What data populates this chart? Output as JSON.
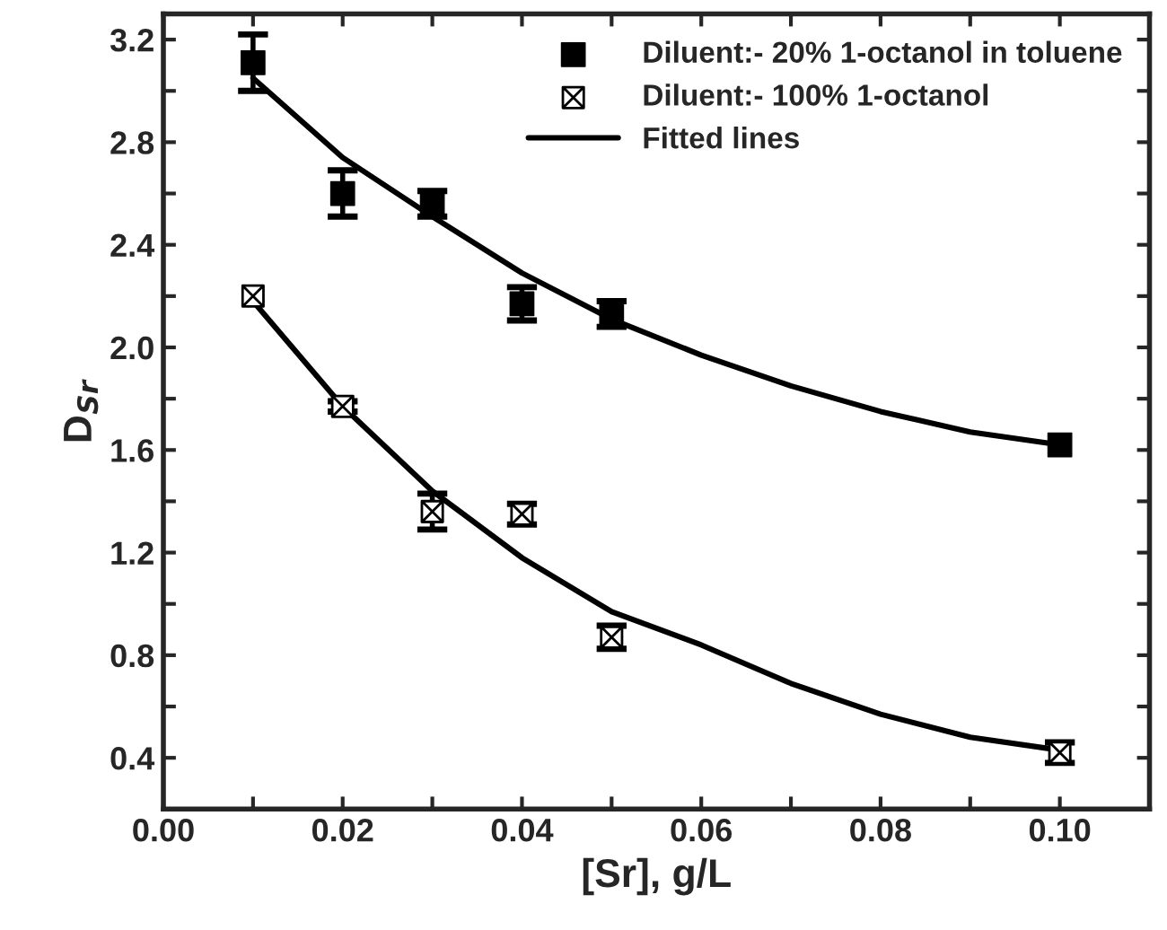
{
  "chart_data": {
    "type": "scatter",
    "xlabel": "[Sr], g/L",
    "ylabel": "D$_{Sr}$",
    "x": [
      0.01,
      0.02,
      0.03,
      0.04,
      0.05,
      0.1
    ],
    "series": [
      {
        "name": "Diluent:- 20% 1-octanol in toluene",
        "color": "#000000",
        "marker": "square",
        "values": [
          3.11,
          2.6,
          2.56,
          2.17,
          2.13,
          1.62
        ],
        "errors": [
          0.11,
          0.09,
          0.05,
          0.065,
          0.05,
          null
        ]
      },
      {
        "name": "Diluent:- 100% 1-octanol",
        "color": "#000000",
        "marker": "cross",
        "values": [
          2.2,
          1.77,
          1.36,
          1.35,
          0.87,
          0.42
        ],
        "errors": [
          null,
          0.02,
          0.07,
          0.04,
          0.045,
          0.04
        ]
      },
      {
        "type": "line",
        "name": "Fitted lines",
        "color": "#000000",
        "x": [
          0.01,
          0.02,
          0.03,
          0.04,
          0.05,
          0.06,
          0.07,
          0.08,
          0.09,
          0.1
        ],
        "values": [
          3.05,
          2.74,
          2.51,
          2.29,
          2.11,
          1.97,
          1.85,
          1.75,
          1.67,
          1.62
        ]
      },
      {
        "type": "line",
        "color": "#000000",
        "x": [
          0.01,
          0.02,
          0.03,
          0.04,
          0.05,
          0.06,
          0.07,
          0.08,
          0.09,
          0.1
        ],
        "values": [
          2.18,
          1.77,
          1.44,
          1.18,
          0.97,
          0.84,
          0.69,
          0.57,
          0.48,
          0.43
        ]
      }
    ],
    "xlim": [
      0,
      0.11
    ],
    "xticks": [
      {
        "value": 0,
        "label": "0.00"
      },
      {
        "value": 0.01,
        "label": null
      },
      {
        "value": 0.02,
        "label": "0.02"
      },
      {
        "value": 0.03,
        "label": null
      },
      {
        "value": 0.04,
        "label": "0.04"
      },
      {
        "value": 0.05,
        "label": null
      },
      {
        "value": 0.06,
        "label": "0.06"
      },
      {
        "value": 0.07,
        "label": null
      },
      {
        "value": 0.08,
        "label": "0.08"
      },
      {
        "value": 0.09,
        "label": null
      },
      {
        "value": 0.1,
        "label": "0.10"
      }
    ],
    "ylim": [
      0.2,
      3.3
    ],
    "yticks": [
      0.4,
      {
        "value": 0.6,
        "label": null
      },
      0.8,
      {
        "value": 1.0,
        "label": null
      },
      1.2,
      {
        "value": 1.4,
        "label": null
      },
      1.6,
      {
        "value": 1.8,
        "label": null
      },
      {
        "value": 2.0,
        "label": "2.0"
      },
      {
        "value": 2.2,
        "label": null
      },
      2.4,
      {
        "value": 2.6,
        "label": null
      },
      2.8,
      {
        "value": 3.0,
        "label": null
      },
      3.2
    ],
    "legend": "top right",
    "grid": false
  }
}
